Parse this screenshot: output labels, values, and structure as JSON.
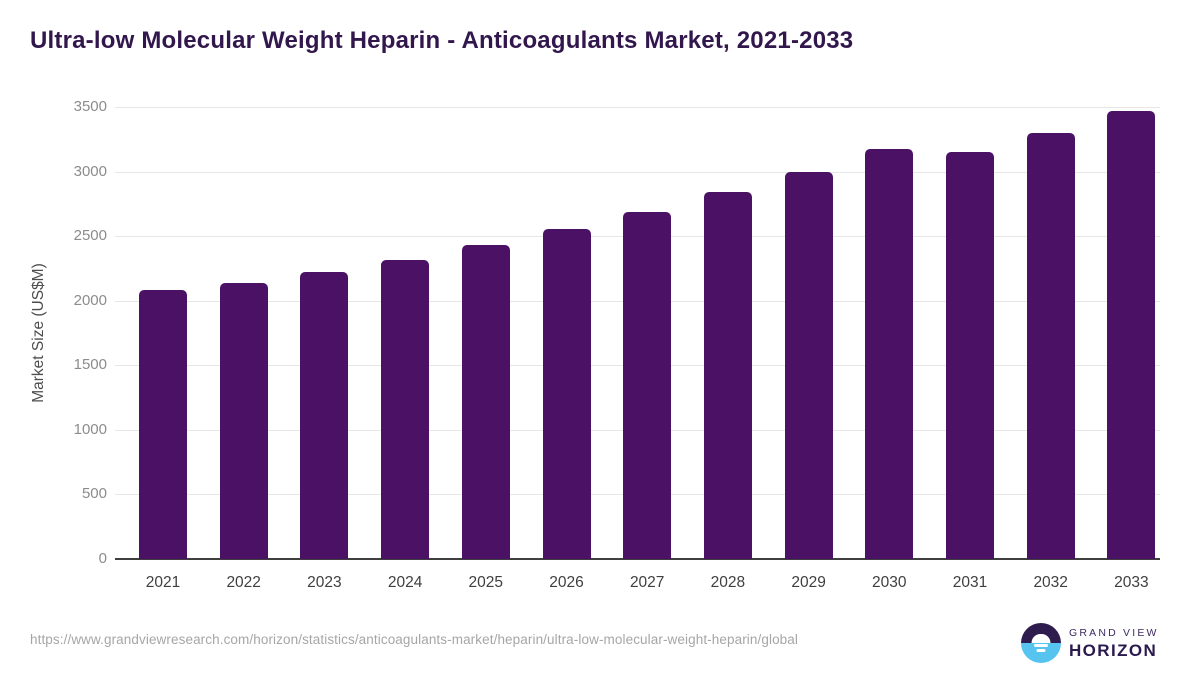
{
  "title": "Ultra-low Molecular Weight Heparin - Anticoagulants Market, 2021-2033",
  "chart_data": {
    "type": "bar",
    "categories": [
      "2021",
      "2022",
      "2023",
      "2024",
      "2025",
      "2026",
      "2027",
      "2028",
      "2029",
      "2030",
      "2031",
      "2032",
      "2033"
    ],
    "values": [
      2085,
      2135,
      2225,
      2315,
      2430,
      2555,
      2690,
      2845,
      3000,
      3175,
      3150,
      3300,
      3470
    ],
    "title": "Ultra-low Molecular Weight Heparin - Anticoagulants Market, 2021-2033",
    "xlabel": "",
    "ylabel": "Market Size (US$M)",
    "ylim": [
      0,
      3500
    ],
    "yticks": [
      0,
      500,
      1000,
      1500,
      2000,
      2500,
      3000,
      3500
    ],
    "grid": true,
    "legend": "none",
    "bar_color": "#4A1164"
  },
  "colors": {
    "bar": "#4A1164",
    "title": "#32174D",
    "y_tick": "#8C8C8C",
    "x_tick": "#3F3F3F",
    "gridline": "#E7E7E7",
    "axis_line": "#3F3F3F",
    "url_text": "#A6A6A6",
    "logo_purple": "#2F1C4E",
    "logo_blue": "#57C4F0"
  },
  "footer": {
    "source_url": "https://www.grandviewresearch.com/horizon/statistics/anticoagulants-market/heparin/ultra-low-molecular-weight-heparin/global",
    "logo": {
      "line1": "GRAND VIEW",
      "line2": "HORIZON"
    }
  }
}
